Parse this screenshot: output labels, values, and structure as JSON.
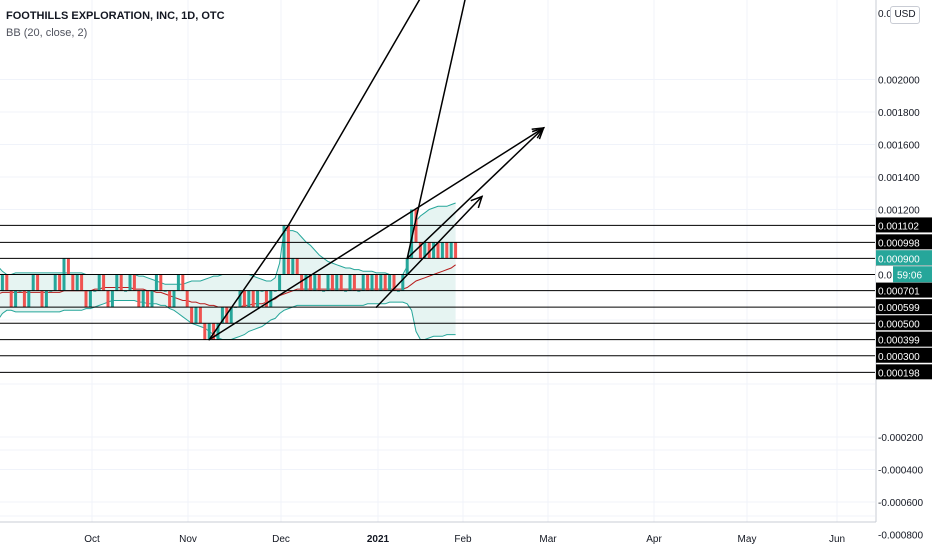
{
  "header": {
    "title": "FOOTHILLS EXPLORATION, INC, 1D, OTC",
    "indicator": "BB (20, close, 2)",
    "currency": "USD"
  },
  "colors": {
    "up": "#26a69a",
    "down": "#ef5350",
    "band": "#26a69a",
    "band_fill": "#e6f4f2",
    "basis": "#b71c1c",
    "lines": "#000000",
    "price_tag_bg": "#26a69a",
    "level_tag_bg": "#000000",
    "grid": "#f0f3fa"
  },
  "chart_data": {
    "type": "candlestick",
    "x_axis_labels": [
      "Oct",
      "Nov",
      "Dec",
      "2021",
      "Feb",
      "Mar",
      "Apr",
      "May",
      "Jun"
    ],
    "y_axis_ticks": [
      "0.002000",
      "0.001800",
      "0.001600",
      "0.001400",
      "0.001200",
      "0.000200",
      "-0.000200",
      "-0.000400",
      "-0.000600",
      "-0.000800"
    ],
    "y_axis_top_partial": "0.0",
    "price_tag": {
      "value": "0.000900",
      "countdown": "59:06",
      "partial": "0.0"
    },
    "level_lines": [
      {
        "value": "0.001102",
        "price": 0.001102
      },
      {
        "value": "0.000998",
        "price": 0.000998
      },
      {
        "value": "0.000899",
        "price": 0.000899
      },
      {
        "value": "0.000800",
        "price": 0.0008
      },
      {
        "value": "0.000701",
        "price": 0.000701
      },
      {
        "value": "0.000599",
        "price": 0.000599
      },
      {
        "value": "0.000500",
        "price": 0.0005
      },
      {
        "value": "0.000399",
        "price": 0.000399
      },
      {
        "value": "0.000300",
        "price": 0.0003
      },
      {
        "value": "0.000198",
        "price": 0.000198
      }
    ],
    "close_level": 0.0009,
    "candles": [
      [
        0.0007,
        0.0007,
        0.0007,
        0.0007
      ],
      [
        0.0007,
        0.0008,
        0.0007,
        0.0008
      ],
      [
        0.0008,
        0.0008,
        0.0007,
        0.0007
      ],
      [
        0.0007,
        0.0007,
        0.0006,
        0.0006
      ],
      [
        0.0006,
        0.0007,
        0.0006,
        0.0007
      ],
      [
        0.0007,
        0.0007,
        0.0007,
        0.0007
      ],
      [
        0.0007,
        0.0007,
        0.0006,
        0.0006
      ],
      [
        0.0006,
        0.0007,
        0.0006,
        0.0007
      ],
      [
        0.0007,
        0.0008,
        0.0007,
        0.0008
      ],
      [
        0.0008,
        0.0008,
        0.0007,
        0.0007
      ],
      [
        0.0007,
        0.0007,
        0.0006,
        0.0006
      ],
      [
        0.0006,
        0.0007,
        0.0006,
        0.0007
      ],
      [
        0.0007,
        0.0007,
        0.0007,
        0.0007
      ],
      [
        0.0007,
        0.0008,
        0.0007,
        0.0008
      ],
      [
        0.0008,
        0.0008,
        0.0007,
        0.0007
      ],
      [
        0.0007,
        0.0009,
        0.0007,
        0.0009
      ],
      [
        0.0009,
        0.0009,
        0.0008,
        0.0008
      ],
      [
        0.0008,
        0.0008,
        0.0007,
        0.0007
      ],
      [
        0.0007,
        0.0008,
        0.0007,
        0.0008
      ],
      [
        0.0008,
        0.0008,
        0.0007,
        0.0007
      ],
      [
        0.0007,
        0.0007,
        0.0006,
        0.0006
      ],
      [
        0.0006,
        0.0007,
        0.0006,
        0.0007
      ],
      [
        0.0007,
        0.0007,
        0.0007,
        0.0007
      ],
      [
        0.0007,
        0.0008,
        0.0007,
        0.0008
      ],
      [
        0.0008,
        0.0008,
        0.0007,
        0.0007
      ],
      [
        0.0007,
        0.0007,
        0.0006,
        0.0006
      ],
      [
        0.0006,
        0.0007,
        0.0006,
        0.0007
      ],
      [
        0.0007,
        0.0008,
        0.0007,
        0.0008
      ],
      [
        0.0008,
        0.0008,
        0.0007,
        0.0007
      ],
      [
        0.0007,
        0.0007,
        0.0007,
        0.0007
      ],
      [
        0.0007,
        0.0008,
        0.0007,
        0.0008
      ],
      [
        0.0008,
        0.0008,
        0.0007,
        0.0007
      ],
      [
        0.0007,
        0.0007,
        0.0006,
        0.0006
      ],
      [
        0.0006,
        0.0007,
        0.0006,
        0.0007
      ],
      [
        0.0007,
        0.0007,
        0.0006,
        0.0006
      ],
      [
        0.0006,
        0.0007,
        0.0006,
        0.0007
      ],
      [
        0.0007,
        0.0008,
        0.0007,
        0.0008
      ],
      [
        0.0008,
        0.0008,
        0.0007,
        0.0007
      ],
      [
        0.0007,
        0.0007,
        0.0007,
        0.0007
      ],
      [
        0.0007,
        0.0007,
        0.0006,
        0.0006
      ],
      [
        0.0006,
        0.0007,
        0.0006,
        0.0007
      ],
      [
        0.0007,
        0.0008,
        0.0007,
        0.0008
      ],
      [
        0.0008,
        0.0008,
        0.0007,
        0.0007
      ],
      [
        0.0007,
        0.0007,
        0.0006,
        0.0006
      ],
      [
        0.0006,
        0.0006,
        0.0005,
        0.0005
      ],
      [
        0.0005,
        0.0006,
        0.0005,
        0.0006
      ],
      [
        0.0006,
        0.0006,
        0.0005,
        0.0005
      ],
      [
        0.0005,
        0.0005,
        0.0004,
        0.0004
      ],
      [
        0.0004,
        0.0005,
        0.0004,
        0.0005
      ],
      [
        0.0005,
        0.0005,
        0.0004,
        0.0004
      ],
      [
        0.0004,
        0.0005,
        0.0004,
        0.0005
      ],
      [
        0.0005,
        0.0006,
        0.0005,
        0.0006
      ],
      [
        0.0006,
        0.0006,
        0.0005,
        0.0005
      ],
      [
        0.0005,
        0.0006,
        0.0005,
        0.0006
      ],
      [
        0.0006,
        0.0006,
        0.0006,
        0.0006
      ],
      [
        0.0006,
        0.0007,
        0.0006,
        0.0007
      ],
      [
        0.0007,
        0.0007,
        0.0006,
        0.0006
      ],
      [
        0.0006,
        0.0007,
        0.0006,
        0.0007
      ],
      [
        0.0007,
        0.0007,
        0.0006,
        0.0006
      ],
      [
        0.0006,
        0.0007,
        0.0006,
        0.0007
      ],
      [
        0.0007,
        0.0007,
        0.0007,
        0.0007
      ],
      [
        0.0007,
        0.0007,
        0.0006,
        0.0006
      ],
      [
        0.0006,
        0.0007,
        0.0006,
        0.0007
      ],
      [
        0.0007,
        0.0007,
        0.0007,
        0.0007
      ],
      [
        0.0007,
        0.0008,
        0.0007,
        0.0008
      ],
      [
        0.0008,
        0.0011,
        0.0008,
        0.0011
      ],
      [
        0.0011,
        0.0011,
        0.0008,
        0.0008
      ],
      [
        0.0008,
        0.0009,
        0.0008,
        0.0009
      ],
      [
        0.0009,
        0.0009,
        0.0008,
        0.0008
      ],
      [
        0.0008,
        0.0008,
        0.0007,
        0.0007
      ],
      [
        0.0007,
        0.0008,
        0.0007,
        0.0008
      ],
      [
        0.0008,
        0.0008,
        0.0007,
        0.0007
      ],
      [
        0.0007,
        0.0008,
        0.0007,
        0.0008
      ],
      [
        0.0008,
        0.0008,
        0.0007,
        0.0007
      ],
      [
        0.0007,
        0.0007,
        0.0007,
        0.0007
      ],
      [
        0.0007,
        0.0008,
        0.0007,
        0.0008
      ],
      [
        0.0008,
        0.0008,
        0.0007,
        0.0007
      ],
      [
        0.0007,
        0.0008,
        0.0007,
        0.0008
      ],
      [
        0.0008,
        0.0008,
        0.0007,
        0.0007
      ],
      [
        0.0007,
        0.0007,
        0.0007,
        0.0007
      ],
      [
        0.0007,
        0.0008,
        0.0007,
        0.0008
      ],
      [
        0.0008,
        0.0008,
        0.0007,
        0.0007
      ],
      [
        0.0007,
        0.0007,
        0.0007,
        0.0007
      ],
      [
        0.0007,
        0.0008,
        0.0007,
        0.0008
      ],
      [
        0.0008,
        0.0008,
        0.0007,
        0.0007
      ],
      [
        0.0007,
        0.0008,
        0.0007,
        0.0008
      ],
      [
        0.0008,
        0.0008,
        0.0007,
        0.0007
      ],
      [
        0.0007,
        0.0008,
        0.0007,
        0.0008
      ],
      [
        0.0008,
        0.0008,
        0.0007,
        0.0007
      ],
      [
        0.0007,
        0.0008,
        0.0007,
        0.0008
      ],
      [
        0.0008,
        0.0008,
        0.0007,
        0.0007
      ],
      [
        0.0007,
        0.0007,
        0.0007,
        0.0007
      ],
      [
        0.0007,
        0.0008,
        0.0007,
        0.0008
      ],
      [
        0.0008,
        0.0009,
        0.0008,
        0.0009
      ],
      [
        0.0009,
        0.0012,
        0.0009,
        0.0012
      ],
      [
        0.0012,
        0.0012,
        0.001,
        0.001
      ],
      [
        0.001,
        0.001,
        0.0009,
        0.0009
      ],
      [
        0.0009,
        0.001,
        0.0009,
        0.001
      ],
      [
        0.001,
        0.001,
        0.0009,
        0.0009
      ],
      [
        0.0009,
        0.001,
        0.0009,
        0.001
      ],
      [
        0.001,
        0.001,
        0.0009,
        0.0009
      ],
      [
        0.0009,
        0.001,
        0.0009,
        0.001
      ],
      [
        0.001,
        0.001,
        0.0009,
        0.0009
      ],
      [
        0.0009,
        0.001,
        0.0009,
        0.001
      ],
      [
        0.001,
        0.001,
        0.0009,
        0.0009
      ]
    ],
    "bb_upper": [
      0.00085,
      0.00082,
      0.0008,
      0.0008,
      0.00081,
      0.00081,
      0.00081,
      0.00081,
      0.00081,
      0.00081,
      0.00081,
      0.00081,
      0.00081,
      0.00081,
      0.00081,
      0.00081,
      0.00081,
      0.00081,
      0.00081,
      0.00081,
      0.0008,
      0.0008,
      0.0008,
      0.0008,
      0.0008,
      0.0008,
      0.0008,
      0.0008,
      0.0008,
      0.0008,
      0.0008,
      0.0008,
      0.00079,
      0.00079,
      0.00078,
      0.00077,
      0.00076,
      0.00075,
      0.00074,
      0.00074,
      0.00074,
      0.00074,
      0.00074,
      0.00075,
      0.00076,
      0.00076,
      0.00076,
      0.00077,
      0.00078,
      0.00079,
      0.00079,
      0.0008,
      0.0008,
      0.0008,
      0.0008,
      0.0008,
      0.0008,
      0.0008,
      0.00079,
      0.00078,
      0.00077,
      0.00076,
      0.00076,
      0.00078,
      0.00087,
      0.00107,
      0.00107,
      0.00107,
      0.00106,
      0.00103,
      0.001,
      0.00098,
      0.00095,
      0.00092,
      0.0009,
      0.00088,
      0.00087,
      0.00086,
      0.00085,
      0.00084,
      0.00084,
      0.00083,
      0.00083,
      0.00082,
      0.00082,
      0.00082,
      0.00081,
      0.00081,
      0.00081,
      0.0008,
      0.0008,
      0.0008,
      0.0008,
      0.00085,
      0.00105,
      0.00113,
      0.00116,
      0.00118,
      0.0012,
      0.00121,
      0.00122,
      0.00122,
      0.00122,
      0.00123,
      0.00124
    ],
    "bb_basis": [
      0.00068,
      0.00069,
      0.00069,
      0.00069,
      0.00069,
      0.00069,
      0.00069,
      0.00069,
      0.00069,
      0.00069,
      0.00069,
      0.00069,
      0.00069,
      0.00069,
      0.00069,
      0.0007,
      0.0007,
      0.0007,
      0.0007,
      0.0007,
      0.0007,
      0.0007,
      0.00071,
      0.00071,
      0.00072,
      0.00072,
      0.00072,
      0.00072,
      0.00072,
      0.00072,
      0.00072,
      0.00071,
      0.00071,
      0.00071,
      0.0007,
      0.0007,
      0.00069,
      0.00069,
      0.00068,
      0.00067,
      0.00066,
      0.00065,
      0.00064,
      0.00064,
      0.00063,
      0.00063,
      0.00062,
      0.00062,
      0.00061,
      0.00061,
      0.0006,
      0.0006,
      0.0006,
      0.0006,
      0.0006,
      0.0006,
      0.00061,
      0.00061,
      0.00062,
      0.00062,
      0.00062,
      0.00063,
      0.00064,
      0.00065,
      0.00067,
      0.00068,
      0.00069,
      0.0007,
      0.00071,
      0.00071,
      0.00071,
      0.00071,
      0.00071,
      0.00071,
      0.00071,
      0.00071,
      0.00071,
      0.00071,
      0.00071,
      0.00071,
      0.00071,
      0.00071,
      0.00071,
      0.00071,
      0.00071,
      0.00071,
      0.00071,
      0.00071,
      0.00071,
      0.00071,
      0.00071,
      0.00071,
      0.00071,
      0.00072,
      0.00074,
      0.00076,
      0.00077,
      0.00078,
      0.00079,
      0.0008,
      0.00081,
      0.00082,
      0.00083,
      0.00084,
      0.00086
    ],
    "bb_lower": [
      0.00052,
      0.00056,
      0.00058,
      0.00058,
      0.00057,
      0.00057,
      0.00057,
      0.00057,
      0.00057,
      0.00057,
      0.00057,
      0.00057,
      0.00057,
      0.00057,
      0.00057,
      0.00058,
      0.00058,
      0.00058,
      0.00058,
      0.00058,
      0.00059,
      0.00059,
      0.0006,
      0.00061,
      0.00062,
      0.00063,
      0.00064,
      0.00064,
      0.00064,
      0.00064,
      0.00064,
      0.00064,
      0.00063,
      0.00063,
      0.00062,
      0.00062,
      0.00062,
      0.00061,
      0.00061,
      0.00059,
      0.00058,
      0.00056,
      0.00054,
      0.00052,
      0.0005,
      0.00049,
      0.00048,
      0.00047,
      0.00045,
      0.00043,
      0.00041,
      0.0004,
      0.0004,
      0.0004,
      0.00041,
      0.00042,
      0.00043,
      0.00045,
      0.00046,
      0.00047,
      0.00048,
      0.0005,
      0.00052,
      0.00053,
      0.00056,
      0.00058,
      0.00059,
      0.0006,
      0.00061,
      0.00061,
      0.00061,
      0.00061,
      0.00061,
      0.00061,
      0.00061,
      0.00061,
      0.00061,
      0.00061,
      0.00061,
      0.00061,
      0.00061,
      0.00061,
      0.00061,
      0.00061,
      0.00062,
      0.00062,
      0.00062,
      0.00062,
      0.00062,
      0.00063,
      0.00063,
      0.00063,
      0.00063,
      0.00062,
      0.00058,
      0.00045,
      0.0004,
      0.0004,
      0.00041,
      0.00042,
      0.00042,
      0.00042,
      0.00043,
      0.00043,
      0.00043
    ],
    "trend_lines": [
      {
        "from": [
          48,
          0.000399
        ],
        "to": [
          66,
          0.001102
        ]
      },
      {
        "from": [
          66,
          0.001102
        ],
        "to": [
          111,
          0.0032
        ]
      },
      {
        "from": [
          48,
          0.000399
        ],
        "to": [
          124,
          0.001702
        ]
      },
      {
        "from": [
          93,
          0.000899
        ],
        "to": [
          112,
          0.0032
        ]
      },
      {
        "from": [
          93,
          0.000899
        ],
        "to": [
          124,
          0.001702
        ]
      },
      {
        "from": [
          86,
          0.000599
        ],
        "to": [
          110,
          0.00128
        ]
      }
    ]
  }
}
